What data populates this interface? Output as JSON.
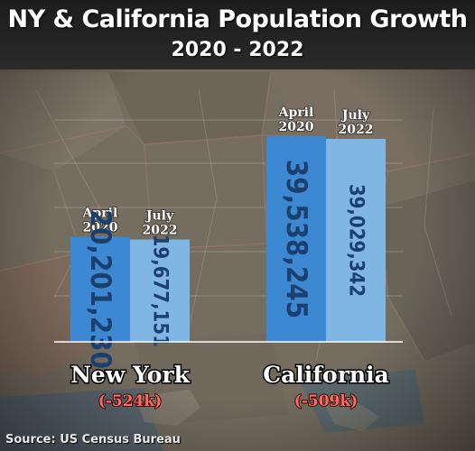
{
  "header": {
    "title": "NY & California Population Growth",
    "subtitle": "2020 - 2022"
  },
  "source": "Source: US Census Bureau",
  "colors": {
    "april_bar": "#3d88d2",
    "july_bar": "#7fb6e4",
    "change_text": "#ff6b63"
  },
  "chart_data": {
    "type": "bar",
    "title": "NY & California Population Growth",
    "subtitle": "2020 - 2022",
    "categories": [
      "New York",
      "California"
    ],
    "category_notes": [
      "(-524k)",
      "(-509k)"
    ],
    "series": [
      {
        "name": "April 2020",
        "name_lines": [
          "April",
          "2020"
        ],
        "values": [
          20201230,
          39538245
        ],
        "labels": [
          "20,201,230",
          "39,538,245"
        ]
      },
      {
        "name": "July 2022",
        "name_lines": [
          "July",
          "2022"
        ],
        "values": [
          19677151,
          39029342
        ],
        "labels": [
          "19,677,151",
          "39,029,342"
        ]
      }
    ],
    "xlabel": "",
    "ylabel": "",
    "grid": true,
    "legend": "none"
  }
}
